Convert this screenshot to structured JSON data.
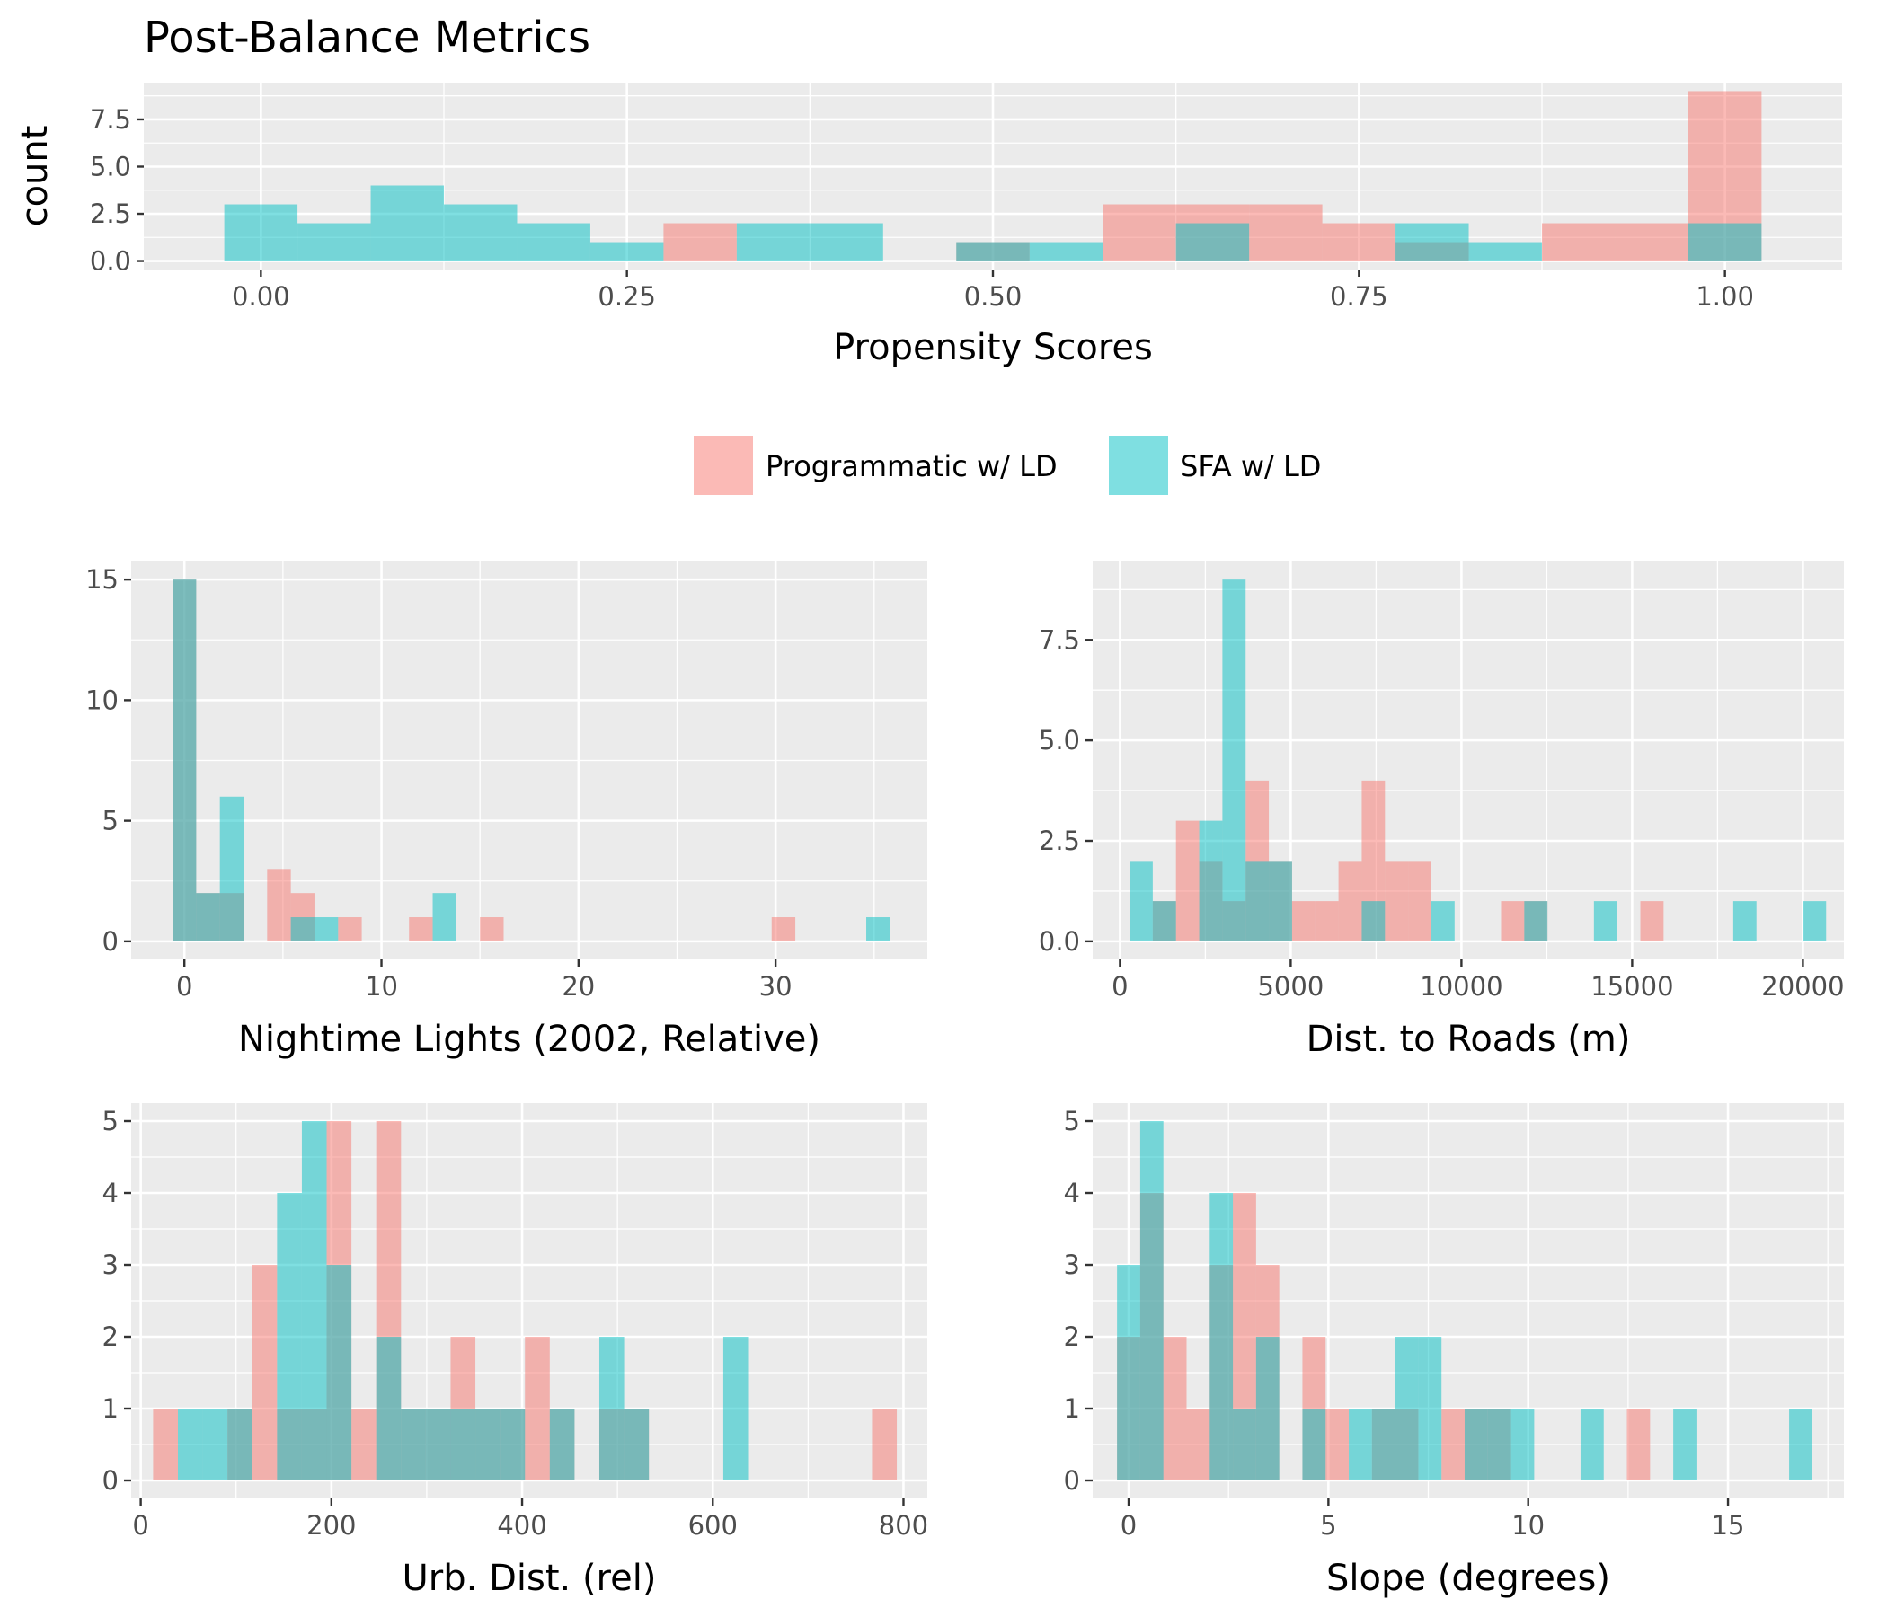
{
  "title": "Post-Balance Metrics",
  "colors": {
    "programmatic": "#F8766D",
    "sfa": "#00BFC4",
    "panel": "#EBEBEB",
    "grid": "#FFFFFF",
    "tick_text": "#4D4D4D"
  },
  "legend": {
    "position": "middle-center",
    "items": [
      {
        "label": "Programmatic w/ LD",
        "color": "#F8766D"
      },
      {
        "label": "SFA w/ LD",
        "color": "#00BFC4"
      }
    ]
  },
  "chart_data": [
    {
      "type": "histogram",
      "id": "propensity",
      "xlabel": "Propensity Scores",
      "ylabel": "count",
      "xlim": [
        -0.08,
        1.08
      ],
      "ylim": [
        -0.45,
        9.45
      ],
      "xticks": [
        0.0,
        0.25,
        0.5,
        0.75,
        1.0
      ],
      "xtick_labels": [
        "0.00",
        "0.25",
        "0.50",
        "0.75",
        "1.00"
      ],
      "yticks": [
        0,
        2.5,
        5,
        7.5
      ],
      "ytick_labels": [
        "0.0",
        "2.5",
        "5.0",
        "7.5"
      ],
      "binwidth": 0.05,
      "series": [
        {
          "name": "Programmatic w/ LD",
          "bins": [
            [
              0.3,
              2
            ],
            [
              0.5,
              1
            ],
            [
              0.6,
              3
            ],
            [
              0.65,
              3
            ],
            [
              0.7,
              3
            ],
            [
              0.75,
              2
            ],
            [
              0.8,
              1
            ],
            [
              0.9,
              2
            ],
            [
              0.95,
              2
            ],
            [
              1.0,
              9
            ]
          ]
        },
        {
          "name": "SFA w/ LD",
          "bins": [
            [
              0.0,
              3
            ],
            [
              0.05,
              2
            ],
            [
              0.1,
              4
            ],
            [
              0.15,
              3
            ],
            [
              0.2,
              2
            ],
            [
              0.25,
              1
            ],
            [
              0.35,
              2
            ],
            [
              0.4,
              2
            ],
            [
              0.5,
              1
            ],
            [
              0.55,
              1
            ],
            [
              0.65,
              2
            ],
            [
              0.8,
              2
            ],
            [
              0.85,
              1
            ],
            [
              1.0,
              2
            ]
          ]
        }
      ]
    },
    {
      "type": "histogram",
      "id": "nightlights",
      "xlabel": "Nightime Lights (2002, Relative)",
      "ylabel": "",
      "xlim": [
        -2.7,
        37.7
      ],
      "ylim": [
        -0.75,
        15.75
      ],
      "xticks": [
        0,
        10,
        20,
        30
      ],
      "xtick_labels": [
        "0",
        "10",
        "20",
        "30"
      ],
      "yticks": [
        0,
        5,
        10,
        15
      ],
      "ytick_labels": [
        "0",
        "5",
        "10",
        "15"
      ],
      "binwidth": 1.2,
      "series": [
        {
          "name": "Programmatic w/ LD",
          "bins": [
            [
              0,
              15
            ],
            [
              1.2,
              2
            ],
            [
              2.4,
              2
            ],
            [
              4.8,
              3
            ],
            [
              6.0,
              2
            ],
            [
              8.4,
              1
            ],
            [
              12.0,
              1
            ],
            [
              15.6,
              1
            ],
            [
              30.4,
              1
            ]
          ]
        },
        {
          "name": "SFA w/ LD",
          "bins": [
            [
              0,
              15
            ],
            [
              1.2,
              2
            ],
            [
              2.4,
              6
            ],
            [
              6.0,
              1
            ],
            [
              7.2,
              1
            ],
            [
              13.2,
              2
            ],
            [
              35.2,
              1
            ]
          ]
        }
      ]
    },
    {
      "type": "histogram",
      "id": "roads",
      "xlabel": "Dist. to Roads (m)",
      "ylabel": "",
      "xlim": [
        -800,
        21200
      ],
      "ylim": [
        -0.45,
        9.45
      ],
      "xticks": [
        0,
        5000,
        10000,
        15000,
        20000
      ],
      "xtick_labels": [
        "0",
        "5000",
        "10000",
        "15000",
        "20000"
      ],
      "yticks": [
        0,
        2.5,
        5,
        7.5
      ],
      "ytick_labels": [
        "0.0",
        "2.5",
        "5.0",
        "7.5"
      ],
      "binwidth": 680,
      "series": [
        {
          "name": "Programmatic w/ LD",
          "bins": [
            [
              1300,
              1
            ],
            [
              1980,
              3
            ],
            [
              2660,
              2
            ],
            [
              3340,
              1
            ],
            [
              4020,
              4
            ],
            [
              4700,
              2
            ],
            [
              5380,
              1
            ],
            [
              6060,
              1
            ],
            [
              6740,
              2
            ],
            [
              7420,
              4
            ],
            [
              8100,
              2
            ],
            [
              8780,
              2
            ],
            [
              11500,
              1
            ],
            [
              12180,
              1
            ],
            [
              15580,
              1
            ]
          ]
        },
        {
          "name": "SFA w/ LD",
          "bins": [
            [
              620,
              2
            ],
            [
              1300,
              1
            ],
            [
              2660,
              3
            ],
            [
              3340,
              9
            ],
            [
              4020,
              2
            ],
            [
              4700,
              2
            ],
            [
              7420,
              1
            ],
            [
              9460,
              1
            ],
            [
              12180,
              1
            ],
            [
              14220,
              1
            ],
            [
              18300,
              1
            ],
            [
              20340,
              1
            ]
          ]
        }
      ]
    },
    {
      "type": "histogram",
      "id": "urban",
      "xlabel": "Urb. Dist. (rel)",
      "ylabel": "",
      "xlim": [
        -10,
        825
      ],
      "ylim": [
        -0.25,
        5.25
      ],
      "xticks": [
        0,
        200,
        400,
        600,
        800
      ],
      "xtick_labels": [
        "0",
        "200",
        "400",
        "600",
        "800"
      ],
      "yticks": [
        0,
        1,
        2,
        3,
        4,
        5
      ],
      "ytick_labels": [
        "0",
        "1",
        "2",
        "3",
        "4",
        "5"
      ],
      "binwidth": 26,
      "series": [
        {
          "name": "Programmatic w/ LD",
          "bins": [
            [
              26,
              1
            ],
            [
              104,
              1
            ],
            [
              130,
              3
            ],
            [
              156,
              1
            ],
            [
              182,
              1
            ],
            [
              208,
              5
            ],
            [
              234,
              1
            ],
            [
              260,
              5
            ],
            [
              286,
              1
            ],
            [
              312,
              1
            ],
            [
              338,
              2
            ],
            [
              364,
              1
            ],
            [
              390,
              1
            ],
            [
              416,
              2
            ],
            [
              442,
              1
            ],
            [
              494,
              1
            ],
            [
              520,
              1
            ],
            [
              780,
              1
            ]
          ]
        },
        {
          "name": "SFA w/ LD",
          "bins": [
            [
              52,
              1
            ],
            [
              78,
              1
            ],
            [
              104,
              1
            ],
            [
              156,
              4
            ],
            [
              182,
              5
            ],
            [
              208,
              3
            ],
            [
              260,
              2
            ],
            [
              286,
              1
            ],
            [
              312,
              1
            ],
            [
              338,
              1
            ],
            [
              364,
              1
            ],
            [
              390,
              1
            ],
            [
              442,
              1
            ],
            [
              494,
              2
            ],
            [
              520,
              1
            ],
            [
              624,
              2
            ]
          ]
        }
      ]
    },
    {
      "type": "histogram",
      "id": "slope",
      "xlabel": "Slope (degrees)",
      "ylabel": "",
      "xlim": [
        -0.9,
        17.9
      ],
      "ylim": [
        -0.25,
        5.25
      ],
      "xticks": [
        0,
        5,
        10,
        15
      ],
      "xtick_labels": [
        "0",
        "5",
        "10",
        "15"
      ],
      "yticks": [
        0,
        1,
        2,
        3,
        4,
        5
      ],
      "ytick_labels": [
        "0",
        "1",
        "2",
        "3",
        "4",
        "5"
      ],
      "binwidth": 0.58,
      "series": [
        {
          "name": "Programmatic w/ LD",
          "bins": [
            [
              0,
              2
            ],
            [
              0.58,
              4
            ],
            [
              1.16,
              2
            ],
            [
              1.74,
              1
            ],
            [
              2.32,
              3
            ],
            [
              2.9,
              4
            ],
            [
              3.48,
              3
            ],
            [
              4.64,
              2
            ],
            [
              5.22,
              1
            ],
            [
              6.38,
              1
            ],
            [
              6.96,
              1
            ],
            [
              8.12,
              1
            ],
            [
              8.7,
              1
            ],
            [
              9.28,
              1
            ],
            [
              12.76,
              1
            ]
          ]
        },
        {
          "name": "SFA w/ LD",
          "bins": [
            [
              0,
              3
            ],
            [
              0.58,
              5
            ],
            [
              2.32,
              4
            ],
            [
              2.9,
              1
            ],
            [
              3.48,
              2
            ],
            [
              4.64,
              1
            ],
            [
              5.8,
              1
            ],
            [
              6.38,
              1
            ],
            [
              6.96,
              2
            ],
            [
              7.54,
              2
            ],
            [
              8.7,
              1
            ],
            [
              9.28,
              1
            ],
            [
              9.86,
              1
            ],
            [
              11.6,
              1
            ],
            [
              13.92,
              1
            ],
            [
              16.82,
              1
            ]
          ]
        }
      ]
    }
  ]
}
